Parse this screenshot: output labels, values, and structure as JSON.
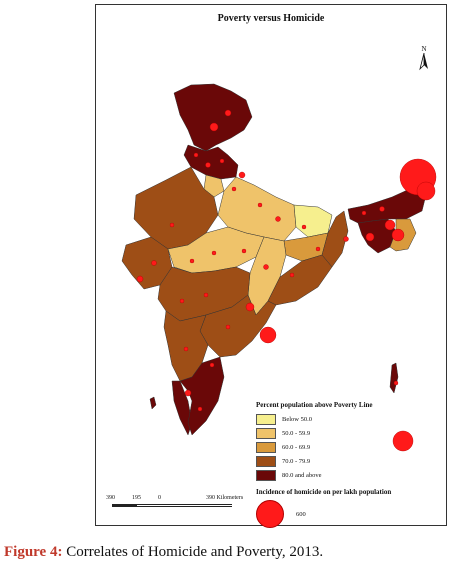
{
  "map": {
    "title": "Poverty versus Homicide",
    "north_label": "N",
    "legend": {
      "title": "Percent population above Poverty Line",
      "classes": [
        {
          "label": "Below 50.0",
          "color": "#f6ef8e"
        },
        {
          "label": "50.0 - 59.9",
          "color": "#efc36a"
        },
        {
          "label": "60.0 - 69.9",
          "color": "#d99a3c"
        },
        {
          "label": "70.0 - 79.9",
          "color": "#9e4e16"
        },
        {
          "label": "80.0 and above",
          "color": "#6a0808"
        }
      ],
      "bubble_title": "Incidence of homicide on per lakh population",
      "bubble_value": "600",
      "bubble_color": "#ff1a1a"
    },
    "scale": {
      "labels": [
        "390",
        "195",
        "0",
        "390 Kilometers"
      ]
    }
  },
  "caption": {
    "label": "Figure 4:",
    "text": " Correlates of Homicide and Poverty, 2013."
  }
}
